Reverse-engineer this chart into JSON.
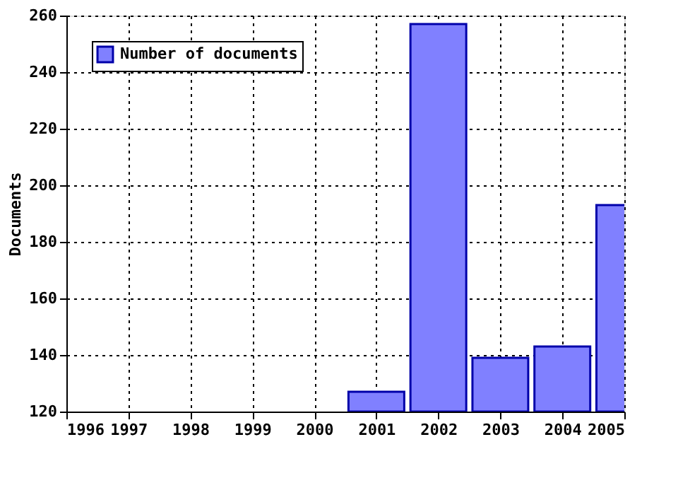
{
  "chart_data": {
    "type": "bar",
    "ylabel": "Documents",
    "x": [
      2001,
      2002,
      2003,
      2004,
      2005
    ],
    "series": [
      {
        "name": "Number of documents",
        "color": "#8080ff",
        "values": [
          127,
          257,
          139,
          143,
          193
        ]
      }
    ],
    "xlim": [
      1996,
      2005
    ],
    "xticks": [
      1996,
      1997,
      1998,
      1999,
      2000,
      2001,
      2002,
      2003,
      2004,
      2005
    ],
    "ylim": [
      120,
      260
    ],
    "yticks": [
      120,
      140,
      160,
      180,
      200,
      220,
      240,
      260
    ],
    "grid": true,
    "legend": "top left"
  }
}
